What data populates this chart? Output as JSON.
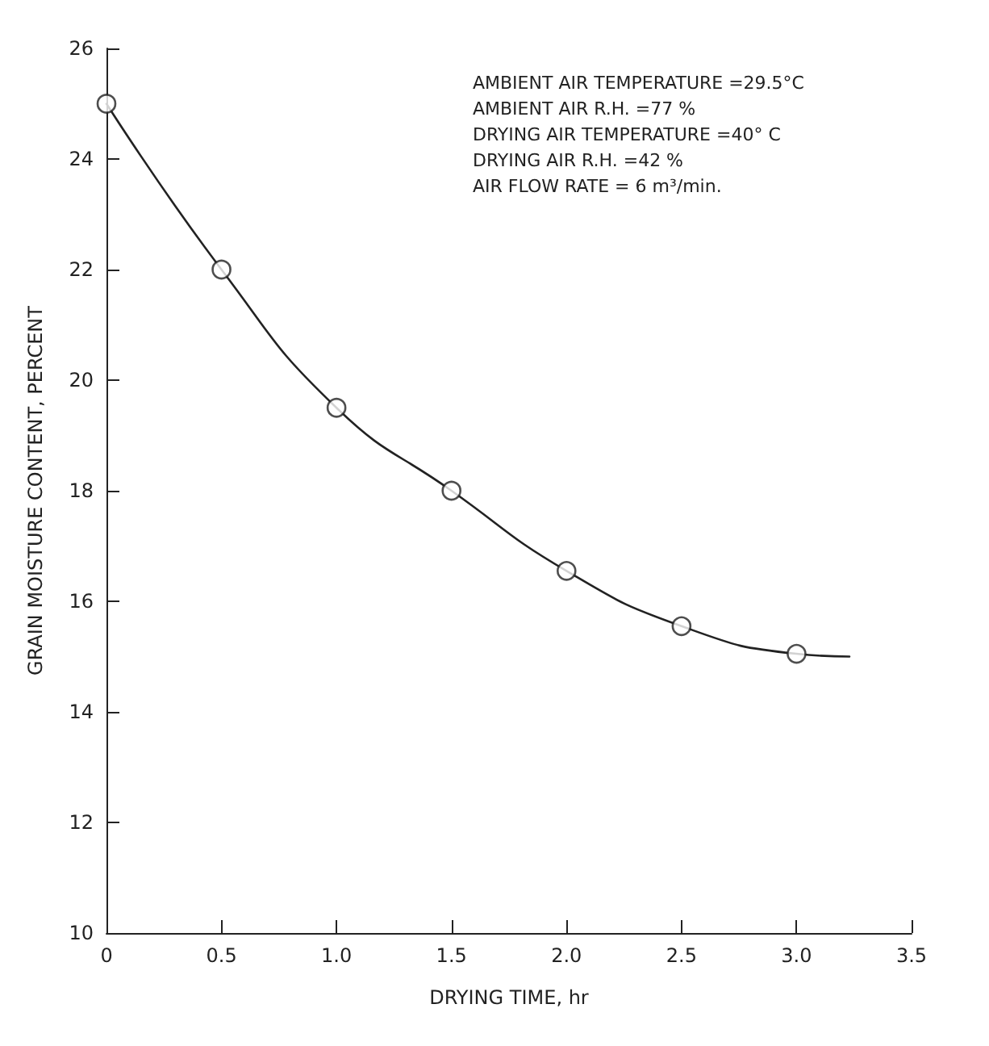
{
  "chart_data": {
    "type": "line",
    "xlabel": "DRYING TIME, hr",
    "ylabel": "GRAIN MOISTURE CONTENT, PERCENT",
    "annotations": [
      "AMBIENT AIR TEMPERATURE =29.5°C",
      "AMBIENT AIR R.H. =77 %",
      "DRYING AIR TEMPERATURE =40° C",
      "DRYING AIR R.H. =42 %",
      "AIR FLOW RATE = 6 m³/min."
    ],
    "series": [
      {
        "type": "line",
        "color": "#222222",
        "marker": "none",
        "line_style": "solid",
        "x": [
          0,
          0.5,
          1.0,
          1.5,
          2.0,
          2.5,
          3.0,
          3.23
        ],
        "values": [
          25,
          22,
          19.5,
          18,
          16.55,
          15.55,
          15.05,
          15.0
        ]
      },
      {
        "type": "scatter",
        "color": "#222222",
        "marker": "circle",
        "x": [
          0,
          0.5,
          1.0,
          1.5,
          2.0,
          2.5,
          3.0
        ],
        "values": [
          25,
          22,
          19.5,
          18,
          16.55,
          15.55,
          15.05
        ]
      }
    ],
    "xlim": [
      0,
      3.5
    ],
    "xticks": [
      0,
      0.5,
      {
        "value": 1,
        "label": "1.0"
      },
      1.5,
      {
        "value": 2,
        "label": "2.0"
      },
      2.5,
      {
        "value": 3,
        "label": "3.0"
      },
      3.5
    ],
    "ylim": [
      10,
      26
    ],
    "yticks": [
      10,
      12,
      14,
      16,
      18,
      20,
      22,
      24,
      26
    ]
  }
}
